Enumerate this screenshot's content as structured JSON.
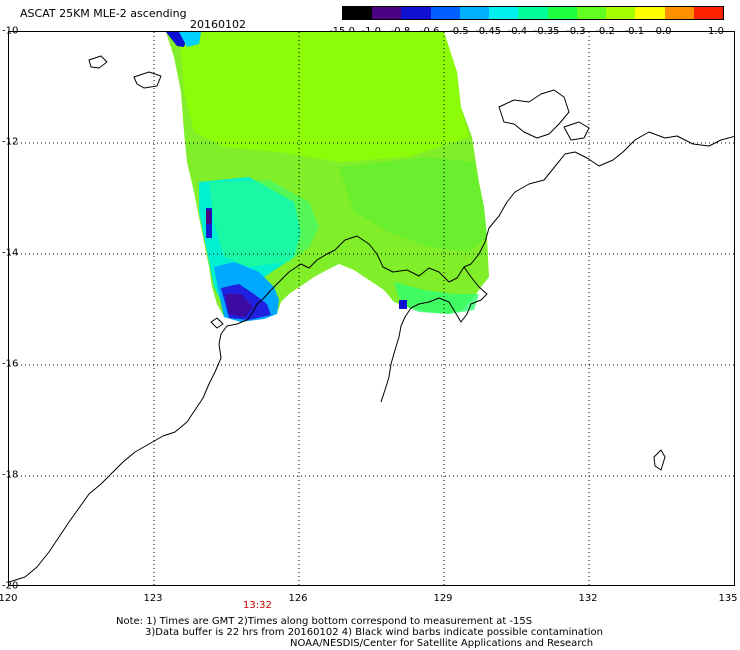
{
  "header": {
    "title": "ASCAT 25KM MLE-2 ascending",
    "date": "20160102"
  },
  "colorbar": {
    "labels": [
      "-15.0",
      "-1.0",
      "-0.8",
      "-0.6",
      "-0.5",
      "-0.45",
      "-0.4",
      "-0.35",
      "-0.3",
      "-0.2",
      "-0.1",
      "0.0",
      "1.0"
    ],
    "colors": [
      "#000000",
      "#4b0082",
      "#1010d0",
      "#0060ff",
      "#00b0ff",
      "#00f0f0",
      "#00ff9a",
      "#20ff40",
      "#60ff20",
      "#a8ff00",
      "#ffff00",
      "#ff9000",
      "#ff2000"
    ]
  },
  "map": {
    "lon_ticks": [
      "120",
      "123",
      "126",
      "129",
      "132",
      "135"
    ],
    "lat_ticks": [
      "-10",
      "-12",
      "-14",
      "-16",
      "-18",
      "-20"
    ],
    "time_label": "13:32",
    "grid": "dotted"
  },
  "footer": {
    "note_line1": "Note: 1) Times are GMT 2)Times along bottom correspond to measurement at -15S",
    "note_line2": "3)Data buffer is 22 hrs from 20160102 4) Black wind barbs indicate possible contamination",
    "note_line3": "NOAA/NESDIS/Center for Satellite Applications and Research"
  }
}
